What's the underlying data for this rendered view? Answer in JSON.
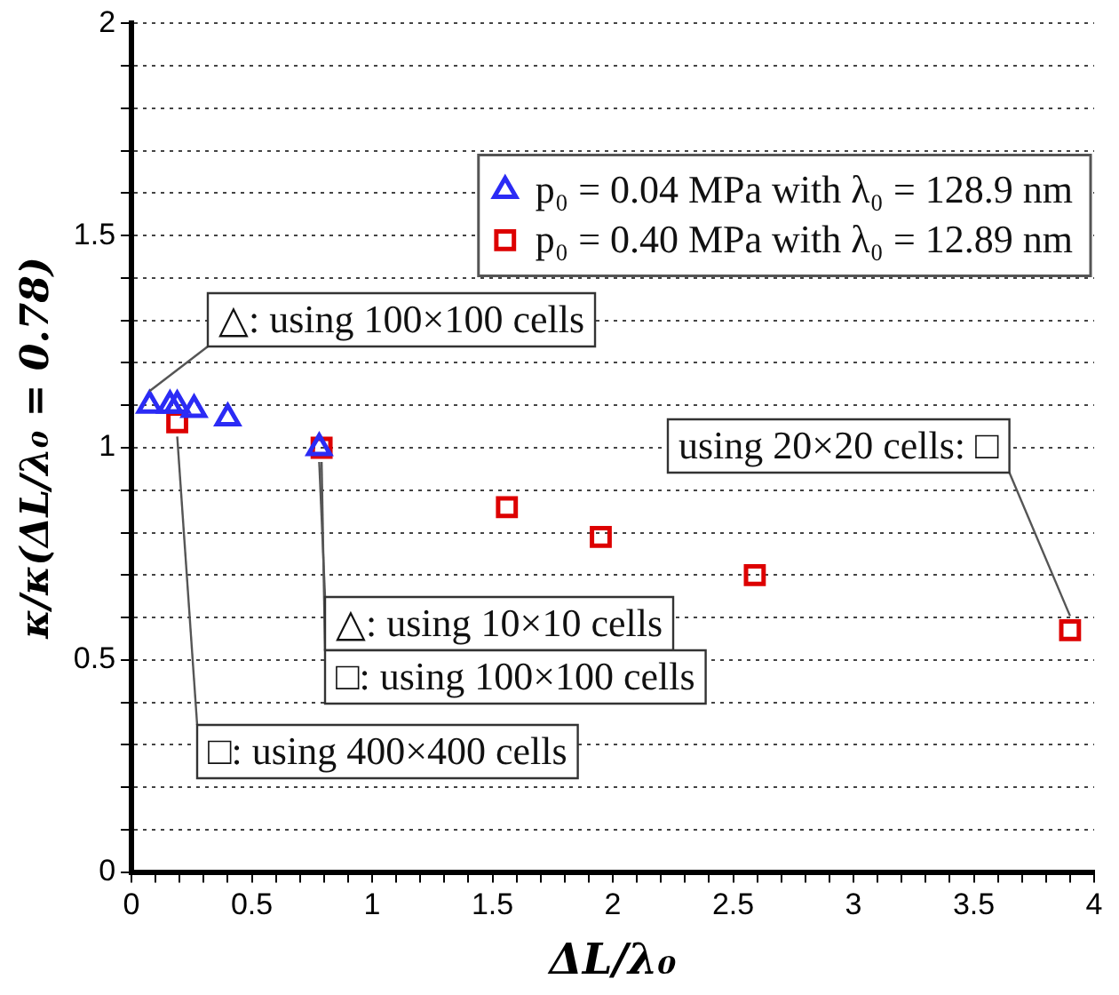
{
  "chart_data": {
    "type": "scatter",
    "xlabel": "ΔL/λ₀",
    "ylabel": "κ/κ(ΔL/λ₀ = 0.78)",
    "xlim": [
      0,
      4
    ],
    "ylim": [
      0,
      2
    ],
    "xticks": [
      0,
      {
        "value": 0.1,
        "label": null
      },
      {
        "value": 0.2,
        "label": null
      },
      {
        "value": 0.3,
        "label": null
      },
      {
        "value": 0.4,
        "label": null
      },
      0.5,
      {
        "value": 0.6,
        "label": null
      },
      {
        "value": 0.7,
        "label": null
      },
      {
        "value": 0.8,
        "label": null
      },
      {
        "value": 0.9,
        "label": null
      },
      1,
      {
        "value": 1.1,
        "label": null
      },
      {
        "value": 1.2,
        "label": null
      },
      {
        "value": 1.3,
        "label": null
      },
      {
        "value": 1.4,
        "label": null
      },
      1.5,
      {
        "value": 1.6,
        "label": null
      },
      {
        "value": 1.7,
        "label": null
      },
      {
        "value": 1.8,
        "label": null
      },
      {
        "value": 1.9,
        "label": null
      },
      2,
      {
        "value": 2.1,
        "label": null
      },
      {
        "value": 2.2,
        "label": null
      },
      {
        "value": 2.3,
        "label": null
      },
      {
        "value": 2.4,
        "label": null
      },
      2.5,
      {
        "value": 2.6,
        "label": null
      },
      {
        "value": 2.7,
        "label": null
      },
      {
        "value": 2.8,
        "label": null
      },
      {
        "value": 2.9,
        "label": null
      },
      3,
      {
        "value": 3.1,
        "label": null
      },
      {
        "value": 3.2,
        "label": null
      },
      {
        "value": 3.3,
        "label": null
      },
      {
        "value": 3.4,
        "label": null
      },
      3.5,
      {
        "value": 3.6,
        "label": null
      },
      {
        "value": 3.7,
        "label": null
      },
      {
        "value": 3.8,
        "label": null
      },
      {
        "value": 3.9,
        "label": null
      },
      4
    ],
    "yticks": [
      0,
      {
        "value": 0.1,
        "label": null
      },
      {
        "value": 0.2,
        "label": null
      },
      {
        "value": 0.3,
        "label": null
      },
      {
        "value": 0.4,
        "label": null
      },
      0.5,
      {
        "value": 0.6,
        "label": null
      },
      {
        "value": 0.7,
        "label": null
      },
      {
        "value": 0.8,
        "label": null
      },
      {
        "value": 0.9,
        "label": null
      },
      1,
      {
        "value": 1.1,
        "label": null
      },
      {
        "value": 1.2,
        "label": null
      },
      {
        "value": 1.3,
        "label": null
      },
      {
        "value": 1.4,
        "label": null
      },
      1.5,
      {
        "value": 1.6,
        "label": null
      },
      {
        "value": 1.7,
        "label": null
      },
      {
        "value": 1.8,
        "label": null
      },
      {
        "value": 1.9,
        "label": null
      },
      2
    ],
    "grid": "y",
    "legend": "top right",
    "line_style": "none",
    "series": [
      {
        "name": "p₀ = 0.04 MPa with λ₀ = 128.9 nm",
        "color": "#2b2bf5",
        "marker": "triangle",
        "x": [
          0.075,
          0.16,
          0.19,
          0.26,
          0.4,
          0.78
        ],
        "values": [
          1.1,
          1.1,
          1.1,
          1.09,
          1.07,
          1.0
        ]
      },
      {
        "name": "p₀ = 0.40 MPa with λ₀ = 12.89 nm",
        "color": "#dd0000",
        "marker": "square",
        "x": [
          0.19,
          0.79,
          1.56,
          1.95,
          2.59,
          3.9
        ],
        "values": [
          1.06,
          1.0,
          0.86,
          0.79,
          0.7,
          0.57
        ]
      }
    ],
    "annotations": [
      {
        "text": "△: using 100×100 cells",
        "x": 0.075,
        "y": 1.1
      },
      {
        "text": "△: using 10×10 cells",
        "x": 0.78,
        "y": 1.0
      },
      {
        "text": "□: using 100×100 cells",
        "x": 0.79,
        "y": 1.0
      },
      {
        "text": "□: using 400×400 cells",
        "x": 0.19,
        "y": 1.06
      },
      {
        "text": "using 20×20 cells: □",
        "x": 3.9,
        "y": 0.57
      }
    ]
  }
}
